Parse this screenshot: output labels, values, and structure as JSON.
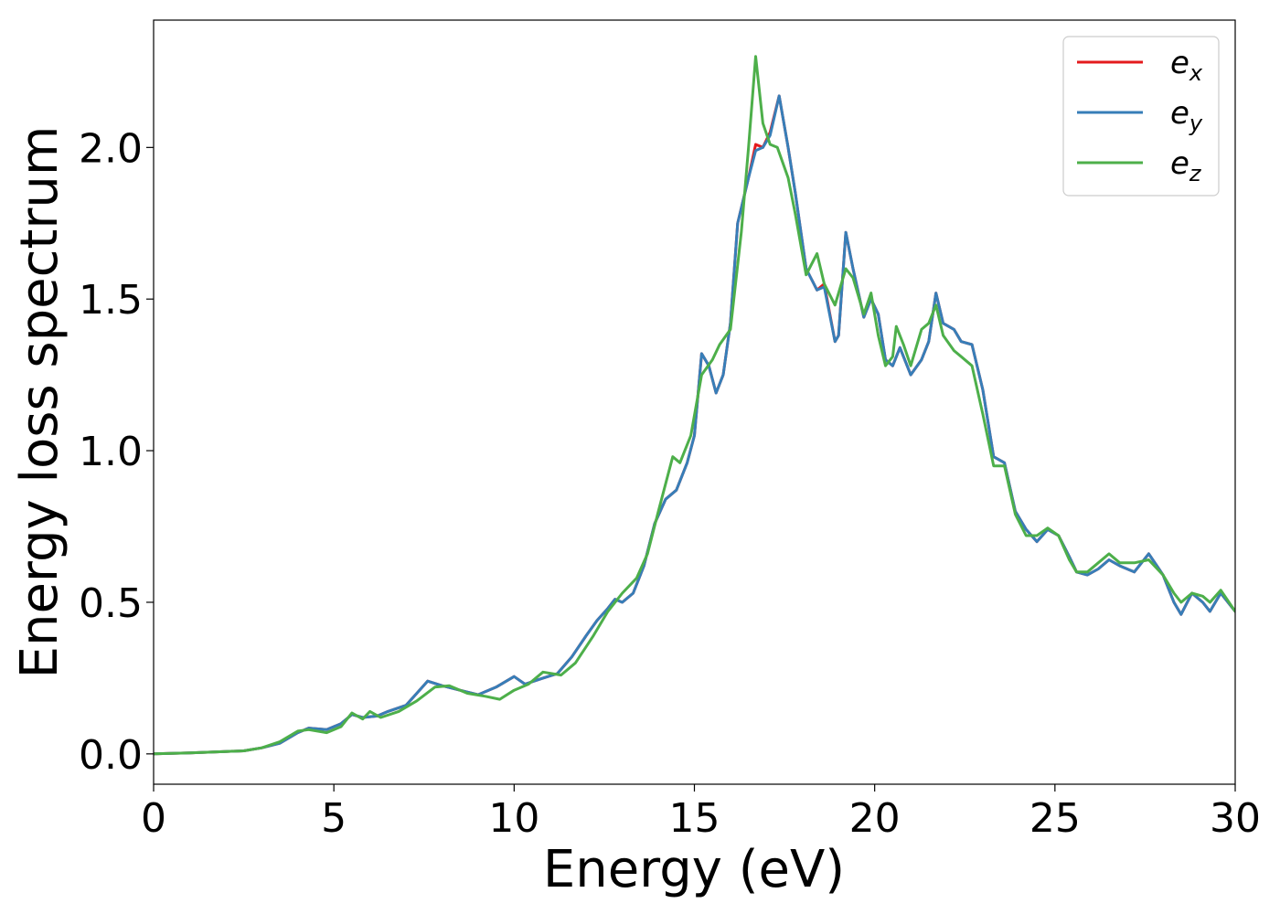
{
  "chart_data": {
    "type": "line",
    "title": "",
    "xlabel": "Energy (eV)",
    "ylabel": "Energy loss spectrum",
    "xlim": [
      0,
      30
    ],
    "ylim": [
      -0.1,
      2.42
    ],
    "xticks": [
      0,
      5,
      10,
      15,
      20,
      25,
      30
    ],
    "yticks": [
      0.0,
      0.5,
      1.0,
      1.5,
      2.0
    ],
    "xtick_labels": [
      "0",
      "5",
      "10",
      "15",
      "20",
      "25",
      "30"
    ],
    "ytick_labels": [
      "0.0",
      "0.5",
      "1.0",
      "1.5",
      "2.0"
    ],
    "grid": false,
    "legend_position": "top-right",
    "series": [
      {
        "name": "e",
        "subscript": "x",
        "color": "#e41a1c",
        "points": [
          [
            0,
            0.0
          ],
          [
            1,
            0.003
          ],
          [
            2,
            0.008
          ],
          [
            2.5,
            0.01
          ],
          [
            3,
            0.02
          ],
          [
            3.5,
            0.035
          ],
          [
            4,
            0.07
          ],
          [
            4.3,
            0.085
          ],
          [
            4.8,
            0.08
          ],
          [
            5.2,
            0.1
          ],
          [
            5.5,
            0.13
          ],
          [
            5.8,
            0.12
          ],
          [
            6.2,
            0.125
          ],
          [
            6.5,
            0.14
          ],
          [
            7,
            0.16
          ],
          [
            7.3,
            0.2
          ],
          [
            7.6,
            0.24
          ],
          [
            8,
            0.225
          ],
          [
            8.5,
            0.21
          ],
          [
            9,
            0.195
          ],
          [
            9.5,
            0.22
          ],
          [
            10,
            0.255
          ],
          [
            10.3,
            0.23
          ],
          [
            10.8,
            0.25
          ],
          [
            11.2,
            0.265
          ],
          [
            11.6,
            0.32
          ],
          [
            12,
            0.39
          ],
          [
            12.3,
            0.44
          ],
          [
            12.6,
            0.48
          ],
          [
            12.8,
            0.51
          ],
          [
            13,
            0.5
          ],
          [
            13.3,
            0.53
          ],
          [
            13.6,
            0.62
          ],
          [
            13.9,
            0.76
          ],
          [
            14.2,
            0.84
          ],
          [
            14.5,
            0.87
          ],
          [
            14.8,
            0.96
          ],
          [
            15,
            1.05
          ],
          [
            15.2,
            1.32
          ],
          [
            15.4,
            1.28
          ],
          [
            15.6,
            1.19
          ],
          [
            15.8,
            1.25
          ],
          [
            16,
            1.42
          ],
          [
            16.2,
            1.75
          ],
          [
            16.5,
            1.9
          ],
          [
            16.7,
            2.01
          ],
          [
            16.9,
            2.0
          ],
          [
            17.1,
            2.05
          ],
          [
            17.35,
            2.17
          ],
          [
            17.6,
            2.0
          ],
          [
            17.8,
            1.85
          ],
          [
            18.1,
            1.6
          ],
          [
            18.4,
            1.53
          ],
          [
            18.6,
            1.55
          ],
          [
            18.9,
            1.36
          ],
          [
            19,
            1.38
          ],
          [
            19.2,
            1.72
          ],
          [
            19.4,
            1.6
          ],
          [
            19.7,
            1.44
          ],
          [
            19.9,
            1.5
          ],
          [
            20.1,
            1.45
          ],
          [
            20.3,
            1.3
          ],
          [
            20.5,
            1.28
          ],
          [
            20.7,
            1.34
          ],
          [
            21,
            1.25
          ],
          [
            21.3,
            1.3
          ],
          [
            21.5,
            1.36
          ],
          [
            21.7,
            1.52
          ],
          [
            21.9,
            1.42
          ],
          [
            22.2,
            1.4
          ],
          [
            22.4,
            1.36
          ],
          [
            22.7,
            1.35
          ],
          [
            23,
            1.2
          ],
          [
            23.3,
            0.98
          ],
          [
            23.6,
            0.96
          ],
          [
            23.9,
            0.8
          ],
          [
            24.2,
            0.74
          ],
          [
            24.5,
            0.7
          ],
          [
            24.8,
            0.74
          ],
          [
            25.1,
            0.72
          ],
          [
            25.4,
            0.65
          ],
          [
            25.6,
            0.6
          ],
          [
            25.9,
            0.59
          ],
          [
            26.2,
            0.61
          ],
          [
            26.5,
            0.64
          ],
          [
            26.8,
            0.62
          ],
          [
            27.2,
            0.6
          ],
          [
            27.6,
            0.66
          ],
          [
            28,
            0.59
          ],
          [
            28.3,
            0.5
          ],
          [
            28.5,
            0.46
          ],
          [
            28.8,
            0.53
          ],
          [
            29.1,
            0.5
          ],
          [
            29.3,
            0.47
          ],
          [
            29.6,
            0.53
          ],
          [
            30,
            0.47
          ]
        ]
      },
      {
        "name": "e",
        "subscript": "y",
        "color": "#377eb8",
        "points": [
          [
            0,
            0.0
          ],
          [
            1,
            0.003
          ],
          [
            2,
            0.008
          ],
          [
            2.5,
            0.01
          ],
          [
            3,
            0.02
          ],
          [
            3.5,
            0.035
          ],
          [
            4,
            0.07
          ],
          [
            4.3,
            0.085
          ],
          [
            4.8,
            0.08
          ],
          [
            5.2,
            0.1
          ],
          [
            5.5,
            0.13
          ],
          [
            5.8,
            0.12
          ],
          [
            6.2,
            0.125
          ],
          [
            6.5,
            0.14
          ],
          [
            7,
            0.16
          ],
          [
            7.3,
            0.2
          ],
          [
            7.6,
            0.24
          ],
          [
            8,
            0.225
          ],
          [
            8.5,
            0.21
          ],
          [
            9,
            0.195
          ],
          [
            9.5,
            0.22
          ],
          [
            10,
            0.255
          ],
          [
            10.3,
            0.23
          ],
          [
            10.8,
            0.25
          ],
          [
            11.2,
            0.265
          ],
          [
            11.6,
            0.32
          ],
          [
            12,
            0.39
          ],
          [
            12.3,
            0.44
          ],
          [
            12.6,
            0.48
          ],
          [
            12.8,
            0.51
          ],
          [
            13,
            0.5
          ],
          [
            13.3,
            0.53
          ],
          [
            13.6,
            0.62
          ],
          [
            13.9,
            0.76
          ],
          [
            14.2,
            0.84
          ],
          [
            14.5,
            0.87
          ],
          [
            14.8,
            0.96
          ],
          [
            15,
            1.05
          ],
          [
            15.2,
            1.32
          ],
          [
            15.4,
            1.28
          ],
          [
            15.6,
            1.19
          ],
          [
            15.8,
            1.25
          ],
          [
            16,
            1.42
          ],
          [
            16.2,
            1.75
          ],
          [
            16.5,
            1.9
          ],
          [
            16.7,
            1.99
          ],
          [
            16.9,
            2.0
          ],
          [
            17.1,
            2.04
          ],
          [
            17.35,
            2.17
          ],
          [
            17.6,
            2.0
          ],
          [
            17.8,
            1.85
          ],
          [
            18.1,
            1.6
          ],
          [
            18.4,
            1.53
          ],
          [
            18.6,
            1.54
          ],
          [
            18.9,
            1.36
          ],
          [
            19,
            1.38
          ],
          [
            19.2,
            1.72
          ],
          [
            19.4,
            1.6
          ],
          [
            19.7,
            1.44
          ],
          [
            19.9,
            1.5
          ],
          [
            20.1,
            1.45
          ],
          [
            20.3,
            1.3
          ],
          [
            20.5,
            1.28
          ],
          [
            20.7,
            1.34
          ],
          [
            21,
            1.25
          ],
          [
            21.3,
            1.3
          ],
          [
            21.5,
            1.36
          ],
          [
            21.7,
            1.52
          ],
          [
            21.9,
            1.42
          ],
          [
            22.2,
            1.4
          ],
          [
            22.4,
            1.36
          ],
          [
            22.7,
            1.35
          ],
          [
            23,
            1.2
          ],
          [
            23.3,
            0.98
          ],
          [
            23.6,
            0.96
          ],
          [
            23.9,
            0.8
          ],
          [
            24.2,
            0.74
          ],
          [
            24.5,
            0.7
          ],
          [
            24.8,
            0.74
          ],
          [
            25.1,
            0.72
          ],
          [
            25.4,
            0.65
          ],
          [
            25.6,
            0.6
          ],
          [
            25.9,
            0.59
          ],
          [
            26.2,
            0.61
          ],
          [
            26.5,
            0.64
          ],
          [
            26.8,
            0.62
          ],
          [
            27.2,
            0.6
          ],
          [
            27.6,
            0.66
          ],
          [
            28,
            0.59
          ],
          [
            28.3,
            0.5
          ],
          [
            28.5,
            0.46
          ],
          [
            28.8,
            0.53
          ],
          [
            29.1,
            0.5
          ],
          [
            29.3,
            0.47
          ],
          [
            29.6,
            0.53
          ],
          [
            30,
            0.47
          ]
        ]
      },
      {
        "name": "e",
        "subscript": "z",
        "color": "#4daf4a",
        "points": [
          [
            0,
            0.0
          ],
          [
            1,
            0.003
          ],
          [
            2,
            0.008
          ],
          [
            2.5,
            0.01
          ],
          [
            3,
            0.02
          ],
          [
            3.5,
            0.04
          ],
          [
            4,
            0.075
          ],
          [
            4.3,
            0.08
          ],
          [
            4.8,
            0.07
          ],
          [
            5.2,
            0.09
          ],
          [
            5.5,
            0.135
          ],
          [
            5.8,
            0.115
          ],
          [
            6,
            0.14
          ],
          [
            6.3,
            0.12
          ],
          [
            6.8,
            0.14
          ],
          [
            7.3,
            0.175
          ],
          [
            7.8,
            0.22
          ],
          [
            8.2,
            0.225
          ],
          [
            8.7,
            0.2
          ],
          [
            9.2,
            0.19
          ],
          [
            9.6,
            0.18
          ],
          [
            10,
            0.21
          ],
          [
            10.4,
            0.23
          ],
          [
            10.8,
            0.27
          ],
          [
            11.3,
            0.26
          ],
          [
            11.7,
            0.3
          ],
          [
            12.2,
            0.39
          ],
          [
            12.6,
            0.47
          ],
          [
            13,
            0.53
          ],
          [
            13.4,
            0.58
          ],
          [
            13.7,
            0.66
          ],
          [
            14,
            0.8
          ],
          [
            14.4,
            0.98
          ],
          [
            14.6,
            0.96
          ],
          [
            14.9,
            1.05
          ],
          [
            15.2,
            1.25
          ],
          [
            15.5,
            1.3
          ],
          [
            15.7,
            1.35
          ],
          [
            16,
            1.4
          ],
          [
            16.3,
            1.72
          ],
          [
            16.5,
            2.0
          ],
          [
            16.7,
            2.3
          ],
          [
            16.9,
            2.08
          ],
          [
            17.1,
            2.01
          ],
          [
            17.3,
            2.0
          ],
          [
            17.6,
            1.9
          ],
          [
            17.8,
            1.78
          ],
          [
            18.1,
            1.58
          ],
          [
            18.4,
            1.65
          ],
          [
            18.6,
            1.55
          ],
          [
            18.9,
            1.48
          ],
          [
            19.2,
            1.6
          ],
          [
            19.4,
            1.57
          ],
          [
            19.7,
            1.45
          ],
          [
            19.9,
            1.52
          ],
          [
            20.1,
            1.38
          ],
          [
            20.3,
            1.28
          ],
          [
            20.5,
            1.31
          ],
          [
            20.6,
            1.41
          ],
          [
            20.8,
            1.35
          ],
          [
            21,
            1.28
          ],
          [
            21.3,
            1.4
          ],
          [
            21.5,
            1.42
          ],
          [
            21.7,
            1.48
          ],
          [
            21.9,
            1.38
          ],
          [
            22.2,
            1.33
          ],
          [
            22.4,
            1.31
          ],
          [
            22.7,
            1.28
          ],
          [
            23,
            1.12
          ],
          [
            23.3,
            0.95
          ],
          [
            23.6,
            0.95
          ],
          [
            23.9,
            0.79
          ],
          [
            24.2,
            0.72
          ],
          [
            24.5,
            0.72
          ],
          [
            24.8,
            0.745
          ],
          [
            25.1,
            0.72
          ],
          [
            25.4,
            0.64
          ],
          [
            25.6,
            0.6
          ],
          [
            25.9,
            0.6
          ],
          [
            26.2,
            0.63
          ],
          [
            26.5,
            0.66
          ],
          [
            26.8,
            0.63
          ],
          [
            27.2,
            0.63
          ],
          [
            27.6,
            0.64
          ],
          [
            28,
            0.59
          ],
          [
            28.3,
            0.53
          ],
          [
            28.5,
            0.5
          ],
          [
            28.8,
            0.53
          ],
          [
            29.1,
            0.52
          ],
          [
            29.3,
            0.5
          ],
          [
            29.6,
            0.54
          ],
          [
            30,
            0.47
          ]
        ]
      }
    ]
  }
}
